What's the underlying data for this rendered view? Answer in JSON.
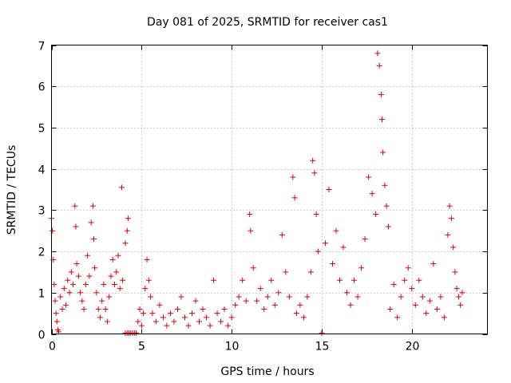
{
  "chart_data": {
    "type": "scatter",
    "title": "Day 081 of 2025, SRMTID for receiver cas1",
    "xlabel": "GPS time / hours",
    "ylabel": "SRMTID / TECUs",
    "xlim": [
      0,
      24.2
    ],
    "ylim": [
      0,
      7
    ],
    "xticks": [
      0,
      5,
      10,
      15,
      20
    ],
    "yticks": [
      0,
      1,
      2,
      3,
      4,
      5,
      6,
      7
    ],
    "grid": true,
    "marker": "plus",
    "marker_color": "#e00000",
    "series": [
      {
        "name": "cas1",
        "x": [
          0.0,
          0.05,
          0.1,
          0.15,
          0.2,
          0.25,
          0.3,
          0.35,
          0.4,
          0.5,
          0.6,
          0.7,
          0.8,
          0.9,
          1.0,
          1.1,
          1.2,
          1.3,
          1.35,
          1.4,
          1.5,
          1.6,
          1.7,
          1.8,
          1.9,
          2.0,
          2.1,
          2.2,
          2.3,
          2.35,
          2.4,
          2.5,
          2.6,
          2.7,
          2.8,
          2.9,
          3.0,
          3.1,
          3.2,
          3.3,
          3.4,
          3.5,
          3.6,
          3.7,
          3.8,
          3.9,
          3.95,
          4.1,
          4.2,
          4.25,
          4.1,
          4.2,
          4.3,
          4.4,
          4.5,
          4.6,
          4.7,
          4.8,
          4.9,
          5.0,
          5.1,
          5.2,
          5.3,
          5.4,
          5.5,
          5.6,
          5.8,
          6.0,
          6.2,
          6.4,
          6.6,
          6.8,
          7.0,
          7.2,
          7.4,
          7.6,
          7.8,
          8.0,
          8.2,
          8.4,
          8.6,
          8.8,
          9.0,
          9.2,
          9.4,
          9.6,
          9.8,
          10.0,
          10.2,
          10.4,
          10.6,
          10.8,
          11.0,
          11.05,
          11.2,
          11.4,
          11.6,
          11.8,
          12.0,
          12.2,
          12.4,
          12.6,
          12.8,
          13.0,
          13.2,
          13.4,
          13.5,
          13.6,
          13.8,
          14.0,
          14.2,
          14.4,
          14.5,
          14.6,
          14.7,
          14.8,
          15.0,
          15.2,
          15.4,
          15.6,
          15.8,
          16.0,
          16.2,
          16.4,
          16.6,
          16.8,
          17.0,
          17.2,
          17.4,
          17.6,
          17.8,
          18.0,
          18.1,
          18.2,
          18.3,
          18.35,
          18.4,
          18.5,
          18.6,
          18.7,
          18.8,
          19.0,
          19.2,
          19.4,
          19.6,
          19.8,
          20.0,
          20.2,
          20.4,
          20.6,
          20.8,
          21.0,
          21.2,
          21.4,
          21.6,
          21.8,
          22.0,
          22.1,
          22.2,
          22.3,
          22.4,
          22.5,
          22.6,
          22.7,
          22.8
        ],
        "y": [
          2.8,
          2.5,
          1.8,
          1.2,
          0.8,
          0.5,
          0.3,
          0.1,
          0.05,
          0.9,
          0.6,
          1.1,
          0.7,
          1.3,
          1.0,
          1.5,
          1.2,
          3.1,
          2.6,
          1.7,
          1.4,
          1.0,
          0.8,
          0.6,
          1.2,
          1.9,
          1.4,
          2.7,
          3.1,
          2.3,
          1.6,
          1.0,
          0.6,
          0.4,
          0.8,
          1.2,
          0.6,
          0.3,
          0.9,
          1.4,
          1.8,
          1.2,
          1.5,
          1.9,
          1.1,
          3.55,
          1.3,
          2.2,
          2.5,
          2.8,
          0.02,
          0.02,
          0.02,
          0.02,
          0.02,
          0.02,
          0.02,
          0.3,
          0.6,
          0.2,
          0.5,
          1.1,
          1.8,
          1.3,
          0.9,
          0.5,
          0.3,
          0.7,
          0.4,
          0.2,
          0.5,
          0.3,
          0.6,
          0.9,
          0.4,
          0.2,
          0.5,
          0.8,
          0.3,
          0.6,
          0.4,
          0.2,
          1.3,
          0.5,
          0.3,
          0.6,
          0.2,
          0.4,
          0.7,
          0.9,
          1.3,
          0.8,
          2.9,
          2.5,
          1.6,
          0.8,
          1.1,
          0.6,
          0.9,
          1.3,
          0.7,
          1.0,
          2.4,
          1.5,
          0.9,
          3.8,
          3.3,
          0.5,
          0.7,
          0.4,
          0.9,
          1.5,
          4.2,
          3.9,
          2.9,
          2.0,
          0.02,
          2.2,
          3.5,
          1.7,
          2.5,
          1.3,
          2.1,
          1.0,
          0.7,
          1.3,
          0.9,
          1.6,
          2.3,
          3.8,
          3.4,
          2.9,
          6.8,
          6.5,
          5.8,
          5.2,
          4.4,
          3.6,
          3.1,
          2.6,
          0.6,
          1.2,
          0.4,
          0.9,
          1.3,
          1.6,
          1.1,
          0.7,
          1.3,
          0.9,
          0.5,
          0.8,
          1.7,
          0.6,
          0.9,
          0.4,
          2.4,
          3.1,
          2.8,
          2.1,
          1.5,
          1.1,
          0.9,
          0.7,
          1.0
        ]
      }
    ]
  }
}
